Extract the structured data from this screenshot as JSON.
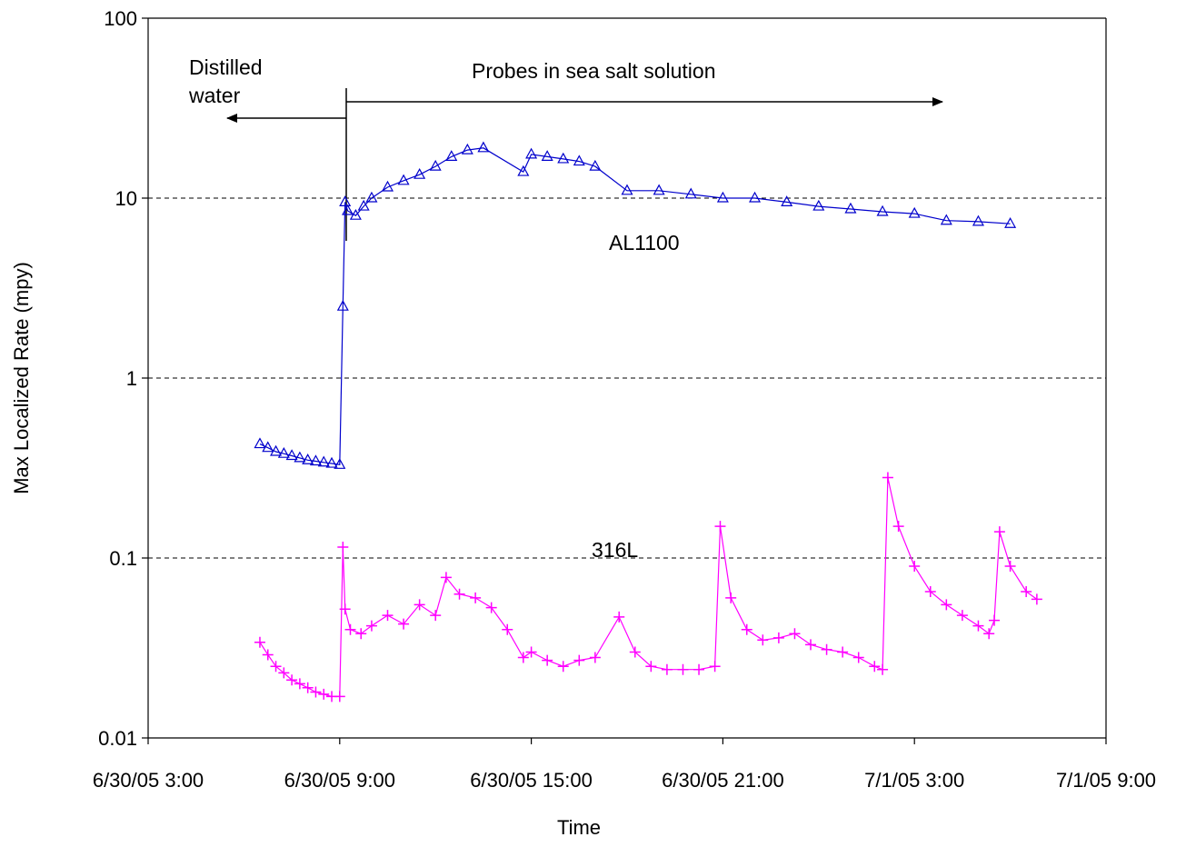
{
  "chart_data": {
    "type": "scatter",
    "xlabel": "Time",
    "ylabel": "Max Localized Rate (mpy)",
    "y_scale": "log",
    "ylim": [
      0.01,
      100
    ],
    "y_ticks": [
      {
        "value": 0.01,
        "label": "0.01"
      },
      {
        "value": 0.1,
        "label": "0.1"
      },
      {
        "value": 1,
        "label": "1"
      },
      {
        "value": 10,
        "label": "10"
      },
      {
        "value": 100,
        "label": "100"
      }
    ],
    "xlim": [
      "2005-06-30T03:00",
      "2005-07-01T09:00"
    ],
    "x_ticks": [
      {
        "value": "2005-06-30T03:00",
        "label": "6/30/05 3:00"
      },
      {
        "value": "2005-06-30T09:00",
        "label": "6/30/05 9:00"
      },
      {
        "value": "2005-06-30T15:00",
        "label": "6/30/05 15:00"
      },
      {
        "value": "2005-06-30T21:00",
        "label": "6/30/05 21:00"
      },
      {
        "value": "2005-07-01T03:00",
        "label": "7/1/05 3:00"
      },
      {
        "value": "2005-07-01T09:00",
        "label": "7/1/05 9:00"
      }
    ],
    "grid": "horizontal dashed at 0.1, 1, 10",
    "legend": "none",
    "series": [
      {
        "name": "AL1100",
        "color": "#0000CC",
        "marker": "triangle",
        "points": [
          [
            "2005-06-30T06:30",
            0.43
          ],
          [
            "2005-06-30T06:45",
            0.41
          ],
          [
            "2005-06-30T07:00",
            0.39
          ],
          [
            "2005-06-30T07:15",
            0.38
          ],
          [
            "2005-06-30T07:30",
            0.37
          ],
          [
            "2005-06-30T07:45",
            0.36
          ],
          [
            "2005-06-30T08:00",
            0.35
          ],
          [
            "2005-06-30T08:15",
            0.345
          ],
          [
            "2005-06-30T08:30",
            0.34
          ],
          [
            "2005-06-30T08:45",
            0.335
          ],
          [
            "2005-06-30T09:00",
            0.33
          ],
          [
            "2005-06-30T09:06",
            2.5
          ],
          [
            "2005-06-30T09:10",
            9.5
          ],
          [
            "2005-06-30T09:15",
            8.5
          ],
          [
            "2005-06-30T09:30",
            8.0
          ],
          [
            "2005-06-30T09:45",
            9.0
          ],
          [
            "2005-06-30T10:00",
            10.0
          ],
          [
            "2005-06-30T10:30",
            11.5
          ],
          [
            "2005-06-30T11:00",
            12.5
          ],
          [
            "2005-06-30T11:30",
            13.5
          ],
          [
            "2005-06-30T12:00",
            15.0
          ],
          [
            "2005-06-30T12:30",
            17.0
          ],
          [
            "2005-06-30T13:00",
            18.5
          ],
          [
            "2005-06-30T13:30",
            19.0
          ],
          [
            "2005-06-30T14:45",
            14.0
          ],
          [
            "2005-06-30T15:00",
            17.5
          ],
          [
            "2005-06-30T15:30",
            17.0
          ],
          [
            "2005-06-30T16:00",
            16.5
          ],
          [
            "2005-06-30T16:30",
            16.0
          ],
          [
            "2005-06-30T17:00",
            15.0
          ],
          [
            "2005-06-30T18:00",
            11.0
          ],
          [
            "2005-06-30T19:00",
            11.0
          ],
          [
            "2005-06-30T20:00",
            10.5
          ],
          [
            "2005-06-30T21:00",
            10.0
          ],
          [
            "2005-06-30T22:00",
            10.0
          ],
          [
            "2005-06-30T23:00",
            9.5
          ],
          [
            "2005-07-01T00:00",
            9.0
          ],
          [
            "2005-07-01T01:00",
            8.7
          ],
          [
            "2005-07-01T02:00",
            8.4
          ],
          [
            "2005-07-01T03:00",
            8.2
          ],
          [
            "2005-07-01T04:00",
            7.5
          ],
          [
            "2005-07-01T05:00",
            7.4
          ],
          [
            "2005-07-01T06:00",
            7.2
          ]
        ]
      },
      {
        "name": "316L",
        "color": "#FF00FF",
        "marker": "plus",
        "points": [
          [
            "2005-06-30T06:30",
            0.034
          ],
          [
            "2005-06-30T06:45",
            0.029
          ],
          [
            "2005-06-30T07:00",
            0.025
          ],
          [
            "2005-06-30T07:15",
            0.023
          ],
          [
            "2005-06-30T07:30",
            0.021
          ],
          [
            "2005-06-30T07:45",
            0.02
          ],
          [
            "2005-06-30T08:00",
            0.019
          ],
          [
            "2005-06-30T08:15",
            0.018
          ],
          [
            "2005-06-30T08:30",
            0.0175
          ],
          [
            "2005-06-30T08:45",
            0.017
          ],
          [
            "2005-06-30T09:00",
            0.017
          ],
          [
            "2005-06-30T09:06",
            0.115
          ],
          [
            "2005-06-30T09:10",
            0.052
          ],
          [
            "2005-06-30T09:20",
            0.04
          ],
          [
            "2005-06-30T09:40",
            0.038
          ],
          [
            "2005-06-30T10:00",
            0.042
          ],
          [
            "2005-06-30T10:30",
            0.048
          ],
          [
            "2005-06-30T11:00",
            0.043
          ],
          [
            "2005-06-30T11:30",
            0.055
          ],
          [
            "2005-06-30T12:00",
            0.048
          ],
          [
            "2005-06-30T12:20",
            0.078
          ],
          [
            "2005-06-30T12:45",
            0.063
          ],
          [
            "2005-06-30T13:15",
            0.06
          ],
          [
            "2005-06-30T13:45",
            0.053
          ],
          [
            "2005-06-30T14:15",
            0.04
          ],
          [
            "2005-06-30T14:45",
            0.028
          ],
          [
            "2005-06-30T15:00",
            0.03
          ],
          [
            "2005-06-30T15:30",
            0.027
          ],
          [
            "2005-06-30T16:00",
            0.025
          ],
          [
            "2005-06-30T16:30",
            0.027
          ],
          [
            "2005-06-30T17:00",
            0.028
          ],
          [
            "2005-06-30T17:45",
            0.047
          ],
          [
            "2005-06-30T18:15",
            0.03
          ],
          [
            "2005-06-30T18:45",
            0.025
          ],
          [
            "2005-06-30T19:15",
            0.024
          ],
          [
            "2005-06-30T19:45",
            0.024
          ],
          [
            "2005-06-30T20:15",
            0.024
          ],
          [
            "2005-06-30T20:45",
            0.025
          ],
          [
            "2005-06-30T20:55",
            0.15
          ],
          [
            "2005-06-30T21:15",
            0.06
          ],
          [
            "2005-06-30T21:45",
            0.04
          ],
          [
            "2005-06-30T22:15",
            0.035
          ],
          [
            "2005-06-30T22:45",
            0.036
          ],
          [
            "2005-06-30T23:15",
            0.038
          ],
          [
            "2005-06-30T23:45",
            0.033
          ],
          [
            "2005-07-01T00:15",
            0.031
          ],
          [
            "2005-07-01T00:45",
            0.03
          ],
          [
            "2005-07-01T01:15",
            0.028
          ],
          [
            "2005-07-01T01:45",
            0.025
          ],
          [
            "2005-07-01T02:00",
            0.024
          ],
          [
            "2005-07-01T02:10",
            0.28
          ],
          [
            "2005-07-01T02:30",
            0.15
          ],
          [
            "2005-07-01T03:00",
            0.09
          ],
          [
            "2005-07-01T03:30",
            0.065
          ],
          [
            "2005-07-01T04:00",
            0.055
          ],
          [
            "2005-07-01T04:30",
            0.048
          ],
          [
            "2005-07-01T05:00",
            0.042
          ],
          [
            "2005-07-01T05:20",
            0.038
          ],
          [
            "2005-07-01T05:30",
            0.045
          ],
          [
            "2005-07-01T05:40",
            0.14
          ],
          [
            "2005-07-01T06:00",
            0.09
          ],
          [
            "2005-07-01T06:30",
            0.065
          ],
          [
            "2005-07-01T06:50",
            0.059
          ]
        ]
      }
    ],
    "annotations": [
      {
        "text_lines": [
          "Distilled",
          "water"
        ],
        "arrow": "left"
      },
      {
        "text_lines": [
          "Probes in sea salt solution"
        ],
        "arrow": "right"
      },
      {
        "text_lines": [
          "AL1100"
        ]
      },
      {
        "text_lines": [
          "316L"
        ]
      }
    ]
  }
}
